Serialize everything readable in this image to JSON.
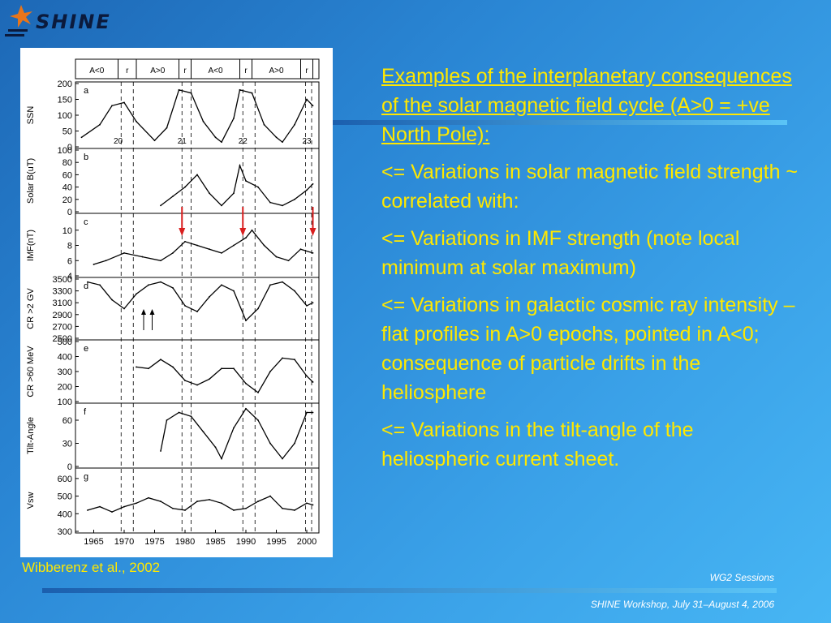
{
  "logo": {
    "text": "SHINE"
  },
  "figure": {
    "caption": "Wibberenz et al., 2002",
    "epochs": [
      "A<0",
      "r",
      "A>0",
      "r",
      "A<0",
      "r",
      "A>0",
      "r"
    ],
    "chart_data": [
      {
        "type": "line",
        "panel": "a",
        "ylabel": "SSN",
        "ylim": [
          0,
          200
        ],
        "yticks": [
          "200",
          "150",
          "100",
          "50",
          "0"
        ],
        "annotations": [
          "20",
          "21",
          "22",
          "23"
        ],
        "series": [
          {
            "x": [
              1963,
              1966,
              1968,
              1970,
              1972,
              1975,
              1977,
              1979,
              1981,
              1983,
              1985,
              1986,
              1988,
              1989,
              1991,
              1993,
              1995,
              1996,
              1998,
              2000,
              2001
            ],
            "values": [
              30,
              70,
              130,
              140,
              80,
              20,
              60,
              180,
              170,
              80,
              30,
              15,
              90,
              180,
              170,
              70,
              30,
              15,
              70,
              150,
              130
            ]
          }
        ]
      },
      {
        "type": "line",
        "panel": "b",
        "ylabel": "Solar B(uT)",
        "ylim": [
          0,
          100
        ],
        "yticks": [
          "100",
          "80",
          "60",
          "40",
          "20",
          "0"
        ],
        "series": [
          {
            "x": [
              1976,
              1978,
              1980,
              1982,
              1984,
              1986,
              1988,
              1989,
              1990,
              1992,
              1994,
              1996,
              1998,
              2000,
              2001
            ],
            "values": [
              10,
              25,
              40,
              60,
              30,
              10,
              30,
              75,
              50,
              40,
              15,
              10,
              20,
              35,
              45
            ]
          }
        ]
      },
      {
        "type": "line",
        "panel": "c",
        "ylabel": "IMF(nT)",
        "ylim": [
          4,
          12
        ],
        "yticks": [
          "10",
          "8",
          "6",
          "4"
        ],
        "series": [
          {
            "x": [
              1965,
              1967,
              1970,
              1973,
              1976,
              1978,
              1980,
              1982,
              1984,
              1986,
              1988,
              1990,
              1991,
              1993,
              1995,
              1997,
              1999,
              2001
            ],
            "values": [
              5.5,
              6,
              7,
              6.5,
              6,
              7,
              8.5,
              8,
              7.5,
              7,
              8,
              9,
              10,
              8,
              6.5,
              6,
              7.5,
              7
            ]
          }
        ]
      },
      {
        "type": "line",
        "panel": "d",
        "ylabel": "CR >2 GV",
        "ylim": [
          2500,
          3500
        ],
        "yticks": [
          "3500",
          "3300",
          "3100",
          "2900",
          "2700",
          "2500"
        ],
        "series": [
          {
            "x": [
              1964,
              1966,
              1968,
              1970,
              1972,
              1974,
              1976,
              1978,
              1980,
              1982,
              1984,
              1986,
              1988,
              1990,
              1992,
              1994,
              1996,
              1998,
              2000,
              2001
            ],
            "values": [
              3450,
              3400,
              3150,
              3000,
              3250,
              3400,
              3450,
              3350,
              3050,
              2950,
              3200,
              3400,
              3300,
              2800,
              3000,
              3400,
              3450,
              3300,
              3050,
              3100
            ]
          }
        ]
      },
      {
        "type": "line",
        "panel": "e",
        "ylabel": "CR >60 MeV",
        "ylim": [
          100,
          500
        ],
        "yticks": [
          "500",
          "400",
          "300",
          "200",
          "100"
        ],
        "series": [
          {
            "x": [
              1972,
              1974,
              1976,
              1978,
              1980,
              1982,
              1984,
              1986,
              1988,
              1990,
              1992,
              1994,
              1996,
              1998,
              2000,
              2001
            ],
            "values": [
              330,
              320,
              380,
              330,
              240,
              210,
              250,
              320,
              320,
              220,
              160,
              300,
              390,
              380,
              270,
              230
            ]
          }
        ]
      },
      {
        "type": "line",
        "panel": "f",
        "ylabel": "Tilt-Angle",
        "ylim": [
          0,
          80
        ],
        "yticks": [
          "60",
          "30",
          "0"
        ],
        "series": [
          {
            "x": [
              1976,
              1977,
              1979,
              1981,
              1983,
              1985,
              1986,
              1988,
              1990,
              1992,
              1994,
              1996,
              1998,
              2000,
              2001
            ],
            "values": [
              20,
              60,
              70,
              65,
              45,
              25,
              10,
              50,
              75,
              60,
              30,
              10,
              30,
              70,
              70
            ]
          }
        ]
      },
      {
        "type": "line",
        "panel": "g",
        "ylabel": "Vsw",
        "ylim": [
          300,
          650
        ],
        "yticks": [
          "600",
          "500",
          "400",
          "300"
        ],
        "xticks": [
          "1965",
          "1970",
          "1975",
          "1980",
          "1985",
          "1990",
          "1995",
          "2000"
        ],
        "series": [
          {
            "x": [
              1964,
              1966,
              1968,
              1970,
              1972,
              1974,
              1976,
              1978,
              1980,
              1982,
              1984,
              1986,
              1988,
              1990,
              1992,
              1994,
              1996,
              1998,
              2000,
              2001
            ],
            "values": [
              420,
              440,
              410,
              440,
              460,
              490,
              470,
              430,
              420,
              470,
              480,
              460,
              420,
              430,
              470,
              500,
              430,
              420,
              460,
              450
            ]
          }
        ]
      }
    ]
  },
  "text": {
    "heading": "Examples of the interplanetary consequences of the solar magnetic field cycle (A>0 = +ve North Pole):",
    "p1": "<= Variations in solar magnetic field strength ~ correlated with:",
    "p2": "<= Variations in IMF strength (note local minimum at solar maximum)",
    "p3": "<= Variations in galactic cosmic ray intensity – flat profiles in A>0 epochs, pointed in A<0; consequence of particle drifts in the heliosphere",
    "p4": "<= Variations in the tilt-angle of the heliospheric current sheet."
  },
  "footer": {
    "line1": "WG2 Sessions",
    "line2": "SHINE Workshop, July 31–August 4, 2006"
  },
  "colors": {
    "text": "#ffe800",
    "arrow": "#d81e1e",
    "logo_star": "#e8751a"
  }
}
